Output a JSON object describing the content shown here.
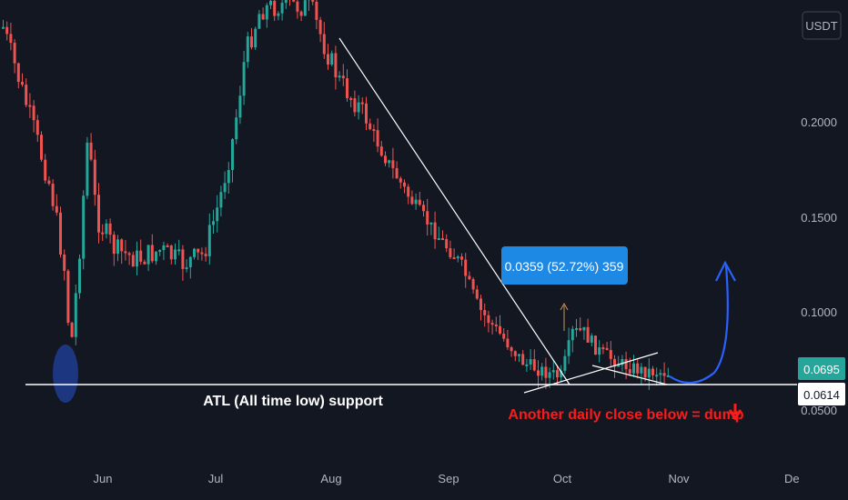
{
  "colors": {
    "background": "#131722",
    "up": "#26a69a",
    "down": "#ef5350",
    "support_line": "#ffffff",
    "measure_box": "#1e88e5",
    "annotation_red": "#ff1a1a",
    "forecast_arrow": "#2962ff",
    "atl_marker": "#1e3a8a",
    "axis_text": "#b2b5be"
  },
  "price_axis": {
    "currency_label": "USDT",
    "ticks": [
      "0.2000",
      "0.1500",
      "0.1000"
    ],
    "tick_values": [
      0.2,
      0.15,
      0.1
    ],
    "last_price": "0.0695",
    "support_price": "0.0614",
    "partial_tick": "0.0500"
  },
  "time_axis": {
    "labels": [
      "Jun",
      "Jul",
      "Aug",
      "Sep",
      "Oct",
      "Nov",
      "De"
    ]
  },
  "annotations": {
    "support_label": "ATL (All time low) support",
    "measure_label": "0.0359 (52.72%) 359",
    "warning_label": "Another daily close below = dump",
    "warning_icon": "down-arrow-icon"
  },
  "chart_data": {
    "type": "candlestick",
    "symbol_currency": "USDT",
    "x_range": [
      "May",
      "Dec"
    ],
    "y_range": [
      0.045,
      0.24
    ],
    "support_level": 0.0614,
    "last_price": 0.0695,
    "measurement": {
      "value": 0.0359,
      "percent": 52.72,
      "bars": 359
    }
  }
}
